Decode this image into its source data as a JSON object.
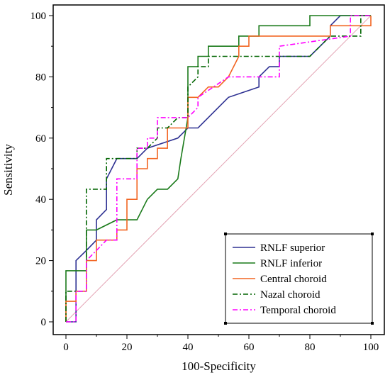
{
  "chart_data": {
    "type": "line",
    "title": "",
    "xlabel": "100-Specificity",
    "ylabel": "Sensitivity",
    "xlim": [
      0,
      100
    ],
    "ylim": [
      0,
      100
    ],
    "xticks": [
      "0",
      "20",
      "40",
      "60",
      "80",
      "100"
    ],
    "yticks": [
      "0",
      "20",
      "40",
      "60",
      "80",
      "100"
    ],
    "grid": false,
    "legend_position": "bottom-right",
    "reference_line": {
      "from": [
        0,
        0
      ],
      "to": [
        100,
        100
      ],
      "color": "#e3a3b3"
    },
    "series": [
      {
        "name": "RNLF superior",
        "color": "#2e3192",
        "dash": "solid",
        "x": [
          0,
          3.3,
          3.3,
          6.7,
          10,
          10,
          13.3,
          13.3,
          16.7,
          23.3,
          26.7,
          36.7,
          40,
          40,
          43.3,
          53.3,
          63.3,
          63.3,
          66.7,
          70,
          70,
          80,
          86.7,
          86.7,
          90,
          100
        ],
        "y": [
          0,
          0,
          20,
          23.3,
          26.7,
          33.3,
          36.7,
          46.7,
          53.3,
          53.3,
          56.7,
          60,
          63.3,
          63.3,
          63.3,
          73.3,
          76.7,
          80,
          83.3,
          83.3,
          86.7,
          86.7,
          93.3,
          96.7,
          100,
          100
        ]
      },
      {
        "name": "RNLF inferior",
        "color": "#1a7a1a",
        "dash": "solid",
        "x": [
          0,
          0,
          3.3,
          3.3,
          6.7,
          6.7,
          10,
          16.7,
          23.3,
          26.7,
          30,
          33.3,
          36.7,
          37.7,
          40,
          40,
          43.3,
          43.3,
          46.7,
          46.7,
          56.7,
          56.7,
          63.3,
          63.3,
          80,
          80,
          100,
          100
        ],
        "y": [
          0,
          16.7,
          16.7,
          16.7,
          16.7,
          30,
          30,
          33.3,
          33.3,
          40,
          43.3,
          43.3,
          46.7,
          53.3,
          66.7,
          83.3,
          83.3,
          86.7,
          86.7,
          90,
          90,
          93.3,
          93.3,
          96.7,
          96.7,
          100,
          100,
          100
        ]
      },
      {
        "name": "Central choroid",
        "color": "#f26522",
        "dash": "solid",
        "x": [
          0,
          0,
          3.3,
          3.3,
          6.7,
          6.7,
          10,
          10,
          16.7,
          16.7,
          20,
          20,
          23.3,
          23.3,
          26.7,
          26.7,
          30,
          30,
          33.3,
          33.3,
          40,
          40,
          43.3,
          46.7,
          50,
          53.3,
          56.7,
          56.7,
          60,
          60,
          63.3,
          63.3,
          86.7,
          86.7,
          100,
          100
        ],
        "y": [
          0,
          6.7,
          6.7,
          10,
          10,
          20,
          20,
          26.7,
          26.7,
          30,
          30,
          40,
          40,
          50,
          50,
          53.3,
          53.3,
          56.7,
          56.7,
          63.3,
          63.3,
          73.3,
          73.3,
          76.7,
          76.7,
          80,
          86.7,
          90,
          90,
          93.3,
          93.3,
          93.3,
          93.3,
          96.7,
          96.7,
          100
        ]
      },
      {
        "name": "Nazal choroid",
        "color": "#006400",
        "dash": "dashdot",
        "x": [
          0,
          0,
          3.3,
          3.3,
          6.7,
          6.7,
          10,
          13.3,
          13.3,
          16.7,
          23.3,
          23.3,
          26.7,
          30,
          30,
          33.3,
          33.3,
          36.7,
          40,
          40,
          43.3,
          43.3,
          46.7,
          46.7,
          56.7,
          80,
          86.7,
          90,
          90,
          96.7,
          96.7,
          100
        ],
        "y": [
          0,
          10,
          10,
          10,
          10,
          43.3,
          43.3,
          43.3,
          53.3,
          53.3,
          53.3,
          56.7,
          56.7,
          60,
          63.3,
          63.3,
          63.3,
          66.7,
          66.7,
          76.7,
          80,
          83.3,
          83.3,
          86.7,
          86.7,
          86.7,
          93.3,
          93.3,
          93.3,
          93.3,
          100,
          100
        ]
      },
      {
        "name": "Temporal choroid",
        "color": "#ff00ff",
        "dash": "dashdot",
        "x": [
          0,
          3.3,
          3.3,
          6.7,
          6.7,
          10,
          13.3,
          16.7,
          16.7,
          23.3,
          23.3,
          26.7,
          26.7,
          30,
          30,
          36.7,
          40,
          43.3,
          43.3,
          53.3,
          63.3,
          70,
          70,
          93.3,
          93.3,
          100
        ],
        "y": [
          0,
          0,
          10,
          10,
          20,
          23.3,
          26.7,
          26.7,
          46.7,
          46.7,
          56.7,
          56.7,
          60,
          60,
          66.7,
          66.7,
          66.7,
          70,
          73.3,
          80,
          80,
          80,
          90,
          93.3,
          100,
          100
        ]
      }
    ]
  }
}
